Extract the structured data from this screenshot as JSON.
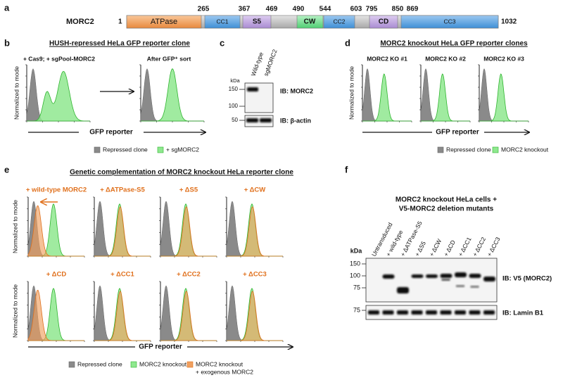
{
  "panel_a": {
    "label": "a",
    "protein": "MORC2",
    "start": 1,
    "end": 1032,
    "domains": [
      "ATPase",
      "CC1",
      "S5",
      "CW",
      "CC2",
      "CD",
      "CC3"
    ],
    "positions": [
      265,
      367,
      469,
      490,
      544,
      603,
      795,
      850,
      869
    ]
  },
  "panel_b": {
    "label": "b",
    "title": "HUSH-repressed HeLa GFP reporter clone",
    "plot_titles": [
      "+ Cas9; + sgPool-MORC2",
      "After GFP⁺ sort"
    ],
    "y_label": "Normalized to mode",
    "x_label": "GFP reporter",
    "legend": [
      "Repressed clone",
      "+ sgMORC2"
    ]
  },
  "panel_c": {
    "label": "c",
    "lanes": [
      "Wild-type",
      "sgMORC2"
    ],
    "kda": "kDa",
    "markers_top": [
      150,
      100
    ],
    "markers_bottom": [
      50
    ],
    "blots": [
      "IB: MORC2",
      "IB: β-actin"
    ]
  },
  "panel_d": {
    "label": "d",
    "title": "MORC2 knockout HeLa GFP reporter clones",
    "plot_titles": [
      "MORC2 KO #1",
      "MORC2 KO #2",
      "MORC2 KO #3"
    ],
    "y_label": "Normalized to mode",
    "x_label": "GFP reporter",
    "legend": [
      "Repressed clone",
      "MORC2 knockout"
    ]
  },
  "panel_e": {
    "label": "e",
    "title": "Genetic complementation of MORC2 knockout HeLa reporter clone",
    "plot_titles": [
      "+ wild-type MORC2",
      "+ ΔATPase-S5",
      "+ ΔS5",
      "+ ΔCW",
      "+ ΔCD",
      "+ ΔCC1",
      "+ ΔCC2",
      "+ ΔCC3"
    ],
    "y_label": "Normalized to mode",
    "x_label": "GFP reporter",
    "legend": [
      "Repressed clone",
      "MORC2 knockout",
      "MORC2 knockout",
      "+ exogenous MORC2"
    ]
  },
  "panel_f": {
    "label": "f",
    "title": [
      "MORC2 knockout HeLa cells +",
      "V5-MORC2 deletion mutants"
    ],
    "kda": "kDa",
    "lanes": [
      "Untransduced",
      "+ wild-type",
      "+ ΔATPase-S5",
      "+ ΔS5",
      "+ ΔCW",
      "+ ΔCD",
      "+ ΔCC1",
      "+ ΔCC2",
      "+ ΔCC3"
    ],
    "markers_top": [
      150,
      100,
      75
    ],
    "markers_bottom": [
      75
    ],
    "blots": [
      "IB: V5 (MORC2)",
      "IB: Lamin B1"
    ]
  }
}
